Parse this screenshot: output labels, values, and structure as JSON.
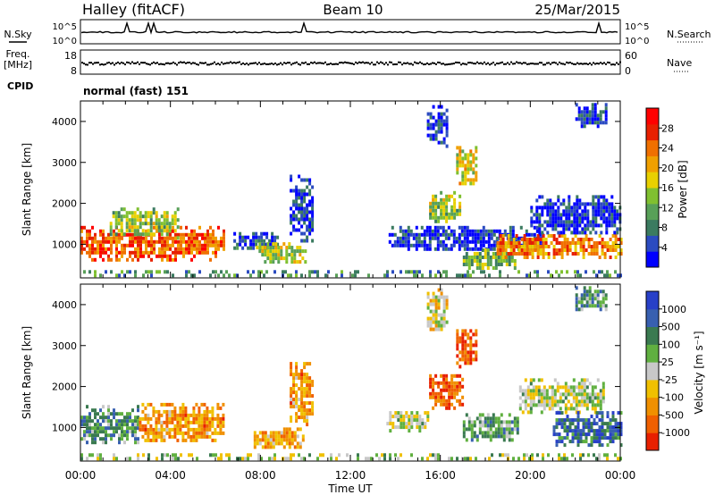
{
  "header": {
    "station": "Halley (fitACF)",
    "beam": "Beam 10",
    "date": "25/Mar/2015"
  },
  "noise_panel": {
    "left_label": "N.Sky",
    "right_label": "N.Search",
    "left_ticks": [
      "10^5",
      "10^0"
    ],
    "right_ticks": [
      "10^5",
      "10^0"
    ]
  },
  "freq_panel": {
    "left_label_top": "Freq.",
    "left_label_bottom": "[MHz]",
    "right_label": "Nave",
    "left_ticks": [
      "18",
      "8"
    ],
    "right_ticks": [
      "60",
      "0"
    ]
  },
  "cpid": {
    "label": "CPID",
    "value": "normal (fast) 151"
  },
  "chart_data": [
    {
      "type": "heatmap",
      "name": "power",
      "xlabel": "Time UT",
      "ylabel": "Slant Range [km]",
      "xlim": [
        0,
        24
      ],
      "ylim": [
        180,
        4500
      ],
      "x_ticks": [
        "00:00",
        "04:00",
        "08:00",
        "12:00",
        "16:00",
        "20:00",
        "00:00"
      ],
      "y_ticks": [
        1000,
        2000,
        3000,
        4000
      ],
      "colorbar": {
        "label": "Power [dB]",
        "ticks": [
          "4",
          "8",
          "12",
          "16",
          "20",
          "24",
          "28"
        ],
        "colors": [
          "#0000ff",
          "#2b4bc0",
          "#3b7b60",
          "#58a058",
          "#80c030",
          "#e8d000",
          "#f0a000",
          "#f07000",
          "#e82000",
          "#ff0000"
        ]
      },
      "regions": [
        {
          "t0": 0.0,
          "t1": 6.4,
          "r0": 650,
          "r1": 1450,
          "level": 0.78
        },
        {
          "t0": 1.3,
          "t1": 4.3,
          "r0": 1200,
          "r1": 1900,
          "level": 0.45
        },
        {
          "t0": 6.8,
          "t1": 8.8,
          "r0": 900,
          "r1": 1300,
          "level": 0.15
        },
        {
          "t0": 7.8,
          "t1": 10.0,
          "r0": 600,
          "r1": 1050,
          "level": 0.5
        },
        {
          "t0": 9.3,
          "t1": 10.3,
          "r0": 1100,
          "r1": 2700,
          "level": 0.12
        },
        {
          "t0": 13.7,
          "t1": 20.6,
          "r0": 850,
          "r1": 1450,
          "level": 0.1
        },
        {
          "t0": 15.5,
          "t1": 16.9,
          "r0": 1550,
          "r1": 2300,
          "level": 0.45
        },
        {
          "t0": 16.7,
          "t1": 17.6,
          "r0": 2500,
          "r1": 3400,
          "level": 0.55
        },
        {
          "t0": 17.0,
          "t1": 19.3,
          "r0": 400,
          "r1": 900,
          "level": 0.4
        },
        {
          "t0": 18.5,
          "t1": 24.0,
          "r0": 700,
          "r1": 1250,
          "level": 0.72
        },
        {
          "t0": 20.0,
          "t1": 24.0,
          "r0": 1300,
          "r1": 2200,
          "level": 0.1
        },
        {
          "t0": 15.4,
          "t1": 16.3,
          "r0": 3400,
          "r1": 4400,
          "level": 0.12
        },
        {
          "t0": 22.0,
          "t1": 23.4,
          "r0": 3900,
          "r1": 4450,
          "level": 0.12
        },
        {
          "t0": 0.0,
          "t1": 24.0,
          "r0": 200,
          "r1": 370,
          "level": 0.3
        }
      ]
    },
    {
      "type": "heatmap",
      "name": "velocity",
      "xlabel": "Time UT",
      "ylabel": "Slant Range [km]",
      "xlim": [
        0,
        24
      ],
      "ylim": [
        180,
        4500
      ],
      "x_ticks": [
        "00:00",
        "04:00",
        "08:00",
        "12:00",
        "16:00",
        "20:00",
        "00:00"
      ],
      "y_ticks": [
        1000,
        2000,
        3000,
        4000
      ],
      "colorbar": {
        "label": "Velocity [m s⁻¹]",
        "ticks": [
          "1000",
          "500",
          "100",
          "25",
          "-25",
          "-100",
          "-500",
          "-1000"
        ],
        "colors": [
          "#2840c8",
          "#3860b0",
          "#3a7a50",
          "#60b040",
          "#c8c8c8",
          "#f0c000",
          "#f09000",
          "#f06000",
          "#e82000"
        ]
      },
      "regions": [
        {
          "t0": 0.0,
          "t1": 2.6,
          "r0": 650,
          "r1": 1550,
          "level": 0.3
        },
        {
          "t0": 2.6,
          "t1": 6.4,
          "r0": 650,
          "r1": 1600,
          "level": 0.72
        },
        {
          "t0": 7.7,
          "t1": 9.9,
          "r0": 550,
          "r1": 1000,
          "level": 0.68
        },
        {
          "t0": 9.3,
          "t1": 10.3,
          "r0": 1100,
          "r1": 2600,
          "level": 0.72
        },
        {
          "t0": 13.6,
          "t1": 15.4,
          "r0": 950,
          "r1": 1400,
          "level": 0.48
        },
        {
          "t0": 15.5,
          "t1": 17.0,
          "r0": 1500,
          "r1": 2300,
          "level": 0.85
        },
        {
          "t0": 16.7,
          "t1": 17.6,
          "r0": 2500,
          "r1": 3400,
          "level": 0.85
        },
        {
          "t0": 17.0,
          "t1": 19.5,
          "r0": 700,
          "r1": 1350,
          "level": 0.35
        },
        {
          "t0": 19.5,
          "t1": 23.3,
          "r0": 1400,
          "r1": 2200,
          "level": 0.48
        },
        {
          "t0": 21.0,
          "t1": 24.0,
          "r0": 600,
          "r1": 1400,
          "level": 0.2
        },
        {
          "t0": 15.4,
          "t1": 16.3,
          "r0": 3400,
          "r1": 4400,
          "level": 0.55
        },
        {
          "t0": 22.0,
          "t1": 23.4,
          "r0": 3900,
          "r1": 4450,
          "level": 0.3
        },
        {
          "t0": 0.0,
          "t1": 24.0,
          "r0": 200,
          "r1": 370,
          "level": 0.45
        }
      ]
    }
  ]
}
